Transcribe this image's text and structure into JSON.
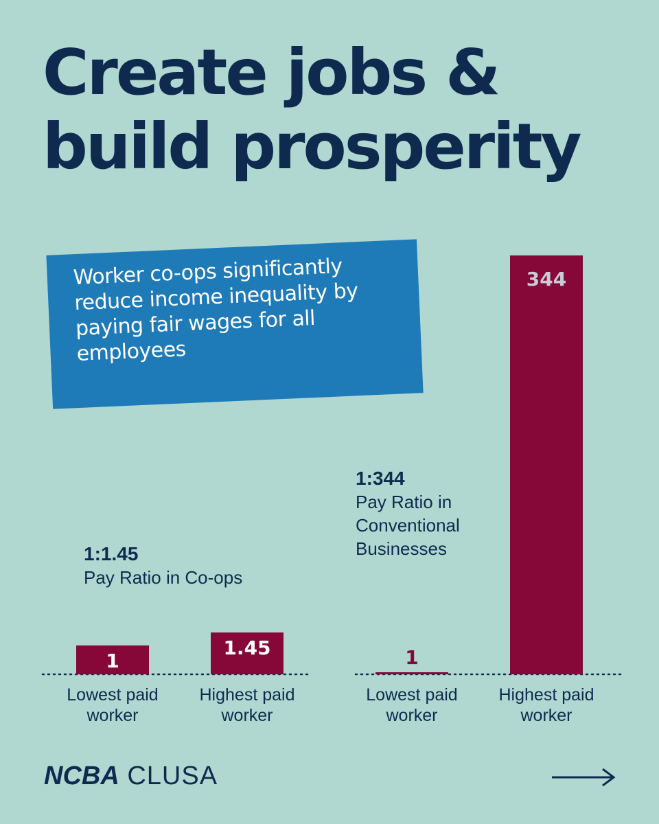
{
  "headline": {
    "line1": "Create jobs &",
    "line2": "build prosperity"
  },
  "callout": {
    "text": "Worker co-ops significantly reduce income inequality by paying fair wages for all employees",
    "background": "#1f7ab8"
  },
  "colors": {
    "background": "#b0d8d1",
    "navy": "#0e2b4f",
    "bar": "#850838",
    "bar_label": "#ffffff",
    "bar_label_tall": "#c9ccd4"
  },
  "chart_data": [
    {
      "type": "bar",
      "ratio_label": "1:1.45",
      "subtitle": "Pay Ratio in Co-ops",
      "categories": [
        "Lowest paid\nworker",
        "Highest paid\nworker"
      ],
      "values": [
        1,
        1.45
      ],
      "value_labels": [
        "1",
        "1.45"
      ]
    },
    {
      "type": "bar",
      "ratio_label": "1:344",
      "subtitle": "Pay Ratio in Conventional Businesses",
      "categories": [
        "Lowest paid\nworker",
        "Highest paid\nworker"
      ],
      "values": [
        1,
        344
      ],
      "value_labels": [
        "1",
        "344"
      ]
    }
  ],
  "footer": {
    "logo_bold": "NCBA",
    "logo_light": "CLUSA",
    "next_icon": "arrow-right-icon"
  }
}
